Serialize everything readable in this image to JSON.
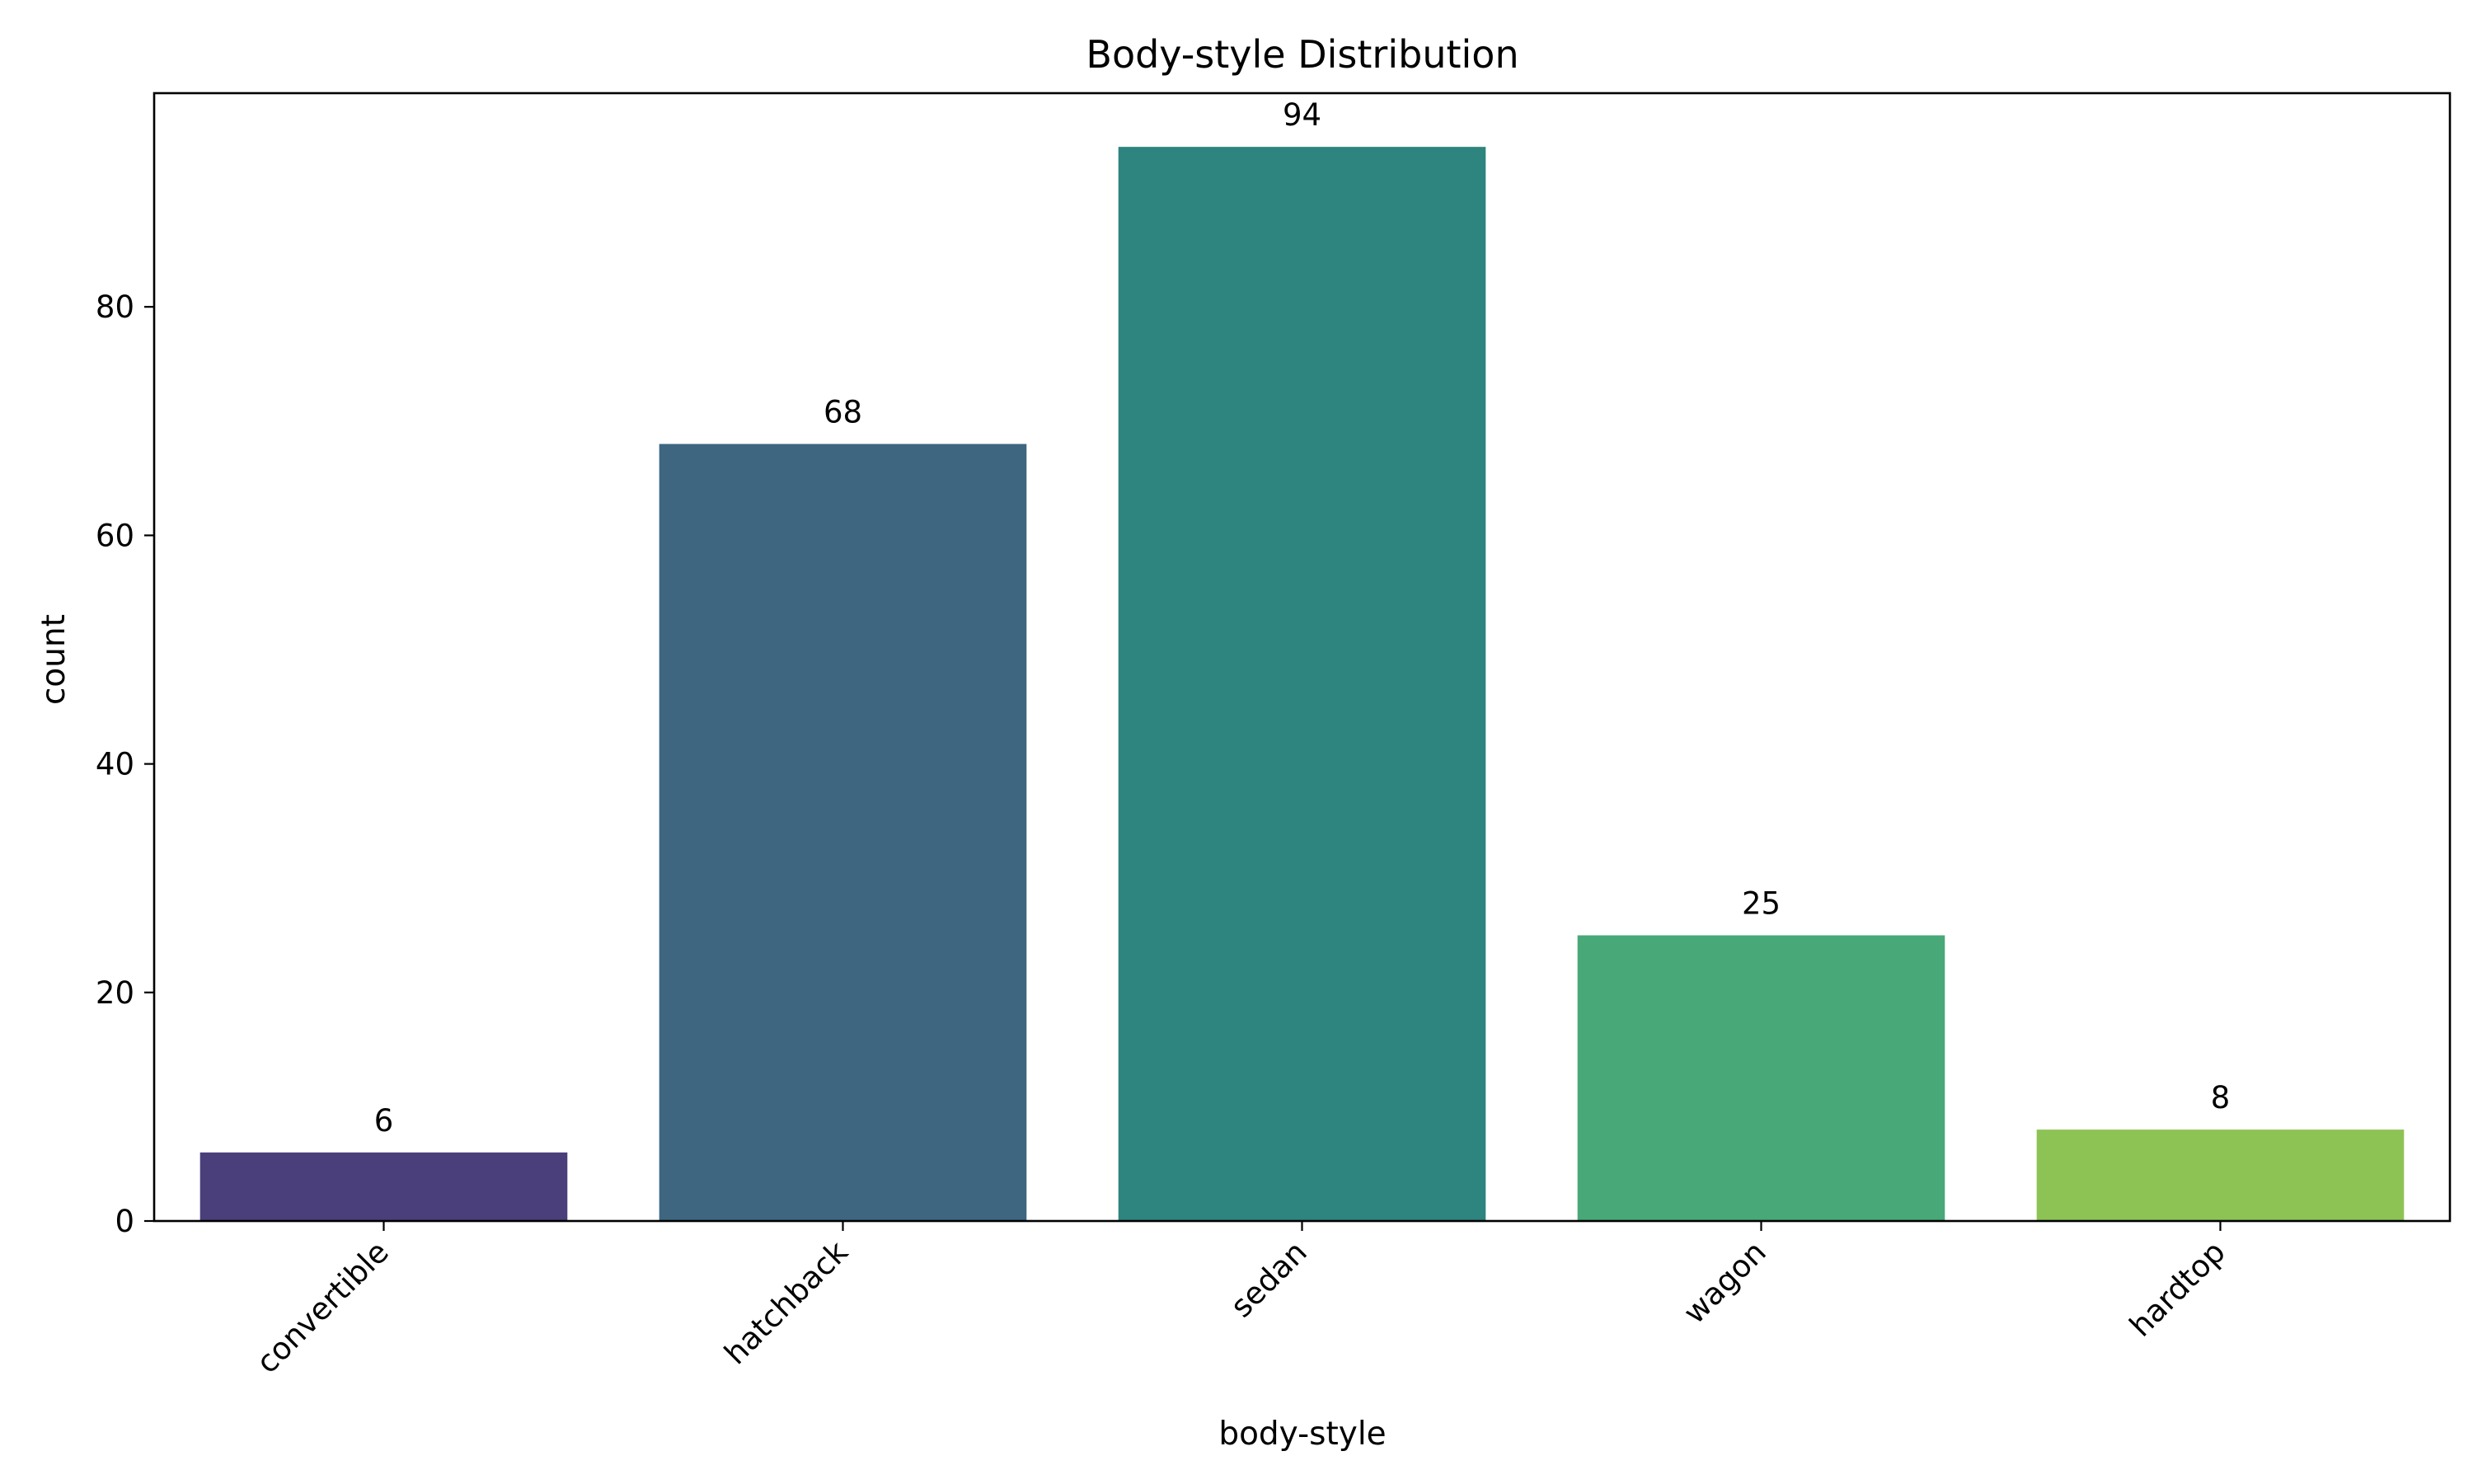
{
  "chart_data": {
    "type": "bar",
    "title": "Body-style Distribution",
    "xlabel": "body-style",
    "ylabel": "count",
    "categories": [
      "convertible",
      "hatchback",
      "sedan",
      "wagon",
      "hardtop"
    ],
    "values": [
      6,
      68,
      94,
      25,
      8
    ],
    "data_labels": [
      "6",
      "68",
      "94",
      "25",
      "8"
    ],
    "colors": [
      "#4a3f7a",
      "#3e6680",
      "#2e847e",
      "#48a877",
      "#8dc355"
    ],
    "ylim": [
      0,
      98.7
    ],
    "yticks": [
      0,
      20,
      40,
      60,
      80
    ],
    "grid": false,
    "legend": "none"
  }
}
